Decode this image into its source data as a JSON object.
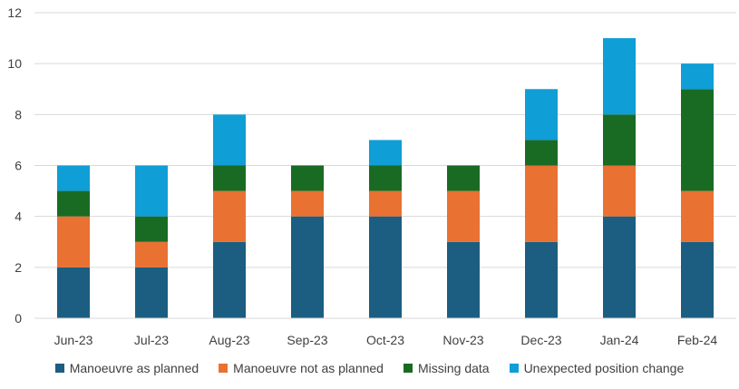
{
  "chart_data": {
    "type": "bar",
    "stacked": true,
    "categories": [
      "Jun-23",
      "Jul-23",
      "Aug-23",
      "Sep-23",
      "Oct-23",
      "Nov-23",
      "Dec-23",
      "Jan-24",
      "Feb-24"
    ],
    "series": [
      {
        "name": "Manoeuvre as planned",
        "color": "#1b5e81",
        "values": [
          2,
          2,
          3,
          4,
          4,
          3,
          3,
          4,
          3
        ]
      },
      {
        "name": "Manoeuvre not as planned",
        "color": "#e97132",
        "values": [
          2,
          1,
          2,
          1,
          1,
          2,
          3,
          2,
          2
        ]
      },
      {
        "name": "Missing data",
        "color": "#196b24",
        "values": [
          1,
          1,
          1,
          1,
          1,
          1,
          1,
          2,
          4
        ]
      },
      {
        "name": "Unexpected position change",
        "color": "#0f9ed5",
        "values": [
          1,
          2,
          2,
          0,
          1,
          0,
          2,
          3,
          1
        ]
      }
    ],
    "ylim": [
      0,
      12
    ],
    "yticks": [
      0,
      2,
      4,
      6,
      8,
      10,
      12
    ],
    "grid": true,
    "legend_position": "bottom",
    "gridline_color": "#d9d9d9",
    "axis_color": "#d9d9d9"
  }
}
